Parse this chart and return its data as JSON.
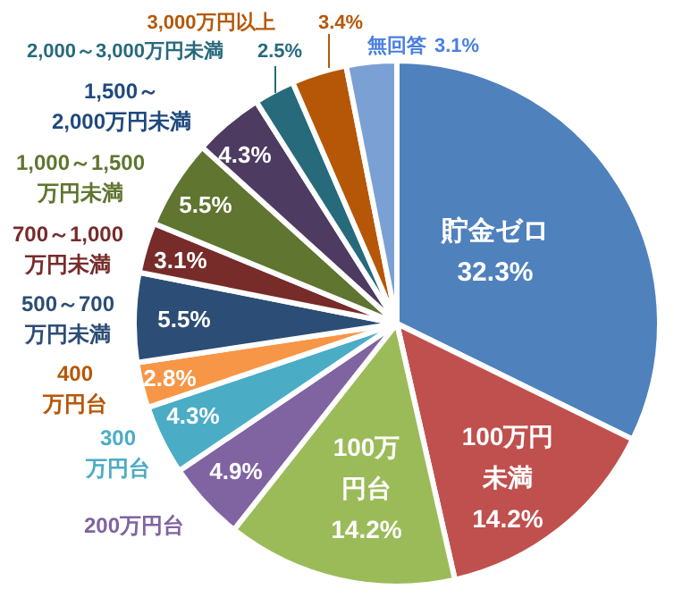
{
  "chart_data": {
    "type": "pie",
    "categories": [
      "貯金ゼロ",
      "100万円未満",
      "100万円台",
      "200万円台",
      "300万円台",
      "400万円台",
      "500～700万円未満",
      "700～1,000万円未満",
      "1,000～1,500万円未満",
      "1,500～2,000万円未満",
      "2,000～3,000万円未満",
      "3,000万円以上",
      "無回答"
    ],
    "values": [
      32.3,
      14.2,
      14.2,
      4.9,
      4.3,
      2.8,
      5.5,
      3.1,
      5.5,
      4.3,
      2.5,
      3.4,
      3.1
    ],
    "colors": [
      "#4f81bd",
      "#c0504d",
      "#9bbb59",
      "#8064a2",
      "#4bacc6",
      "#f79646",
      "#2c4d75",
      "#772c2a",
      "#5f7530",
      "#4d3b62",
      "#276a7c",
      "#b65708",
      "#7ba0d4"
    ],
    "value_labels": [
      "32.3%",
      "14.2%",
      "14.2%",
      "4.9%",
      "4.3%",
      "2.8%",
      "5.5%",
      "3.1%",
      "5.5%",
      "4.3%",
      "2.5%",
      "3.4%",
      "3.1%"
    ]
  }
}
